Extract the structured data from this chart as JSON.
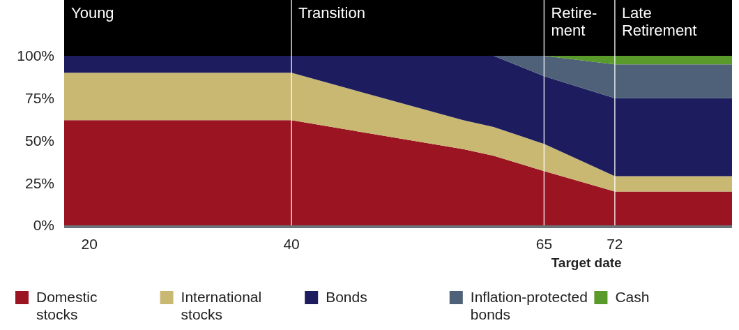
{
  "chart_data": {
    "type": "area",
    "stacked": true,
    "xlabel": "Target date",
    "x": [
      17.5,
      40,
      57,
      60,
      65,
      72,
      83.6
    ],
    "xlim": [
      17.5,
      83.6
    ],
    "xticks": [
      20,
      40,
      65,
      72
    ],
    "ylim": [
      0,
      100
    ],
    "yticks": [
      {
        "value": 0,
        "label": "0%"
      },
      {
        "value": 25,
        "label": "25%"
      },
      {
        "value": 50,
        "label": "50%"
      },
      {
        "value": 75,
        "label": "75%"
      },
      {
        "value": 100,
        "label": "100%"
      }
    ],
    "series": [
      {
        "name": "Domestic stocks",
        "color": "#9b1422",
        "values": [
          62,
          62,
          45,
          41,
          32,
          20,
          20
        ]
      },
      {
        "name": "International stocks",
        "color": "#c9b872",
        "values": [
          28,
          28,
          17,
          17,
          16,
          9,
          9
        ]
      },
      {
        "name": "Bonds",
        "color": "#1c1c5e",
        "values": [
          10,
          10,
          38,
          42,
          40,
          46,
          46
        ]
      },
      {
        "name": "Inflation-protected bonds",
        "color": "#4f6178",
        "values": [
          0,
          0,
          0,
          0,
          12,
          20,
          20
        ]
      },
      {
        "name": "Cash",
        "color": "#5a9a2a",
        "values": [
          0,
          0,
          0,
          0,
          0,
          5,
          5
        ]
      }
    ],
    "annotations": [
      "Young",
      {
        "text": "Transition",
        "x": 40
      },
      {
        "text": "Retire-\nment",
        "x": 65
      },
      {
        "text": "Late\nRetirement",
        "x": 72
      }
    ],
    "ref_lines": [
      {
        "axis": "x",
        "value": 40,
        "color": "#ffffff"
      },
      {
        "axis": "x",
        "value": 65,
        "color": "#ffffff"
      },
      {
        "axis": "x",
        "value": 72,
        "color": "#ffffff"
      }
    ],
    "grid": false,
    "legend": "bottom"
  }
}
